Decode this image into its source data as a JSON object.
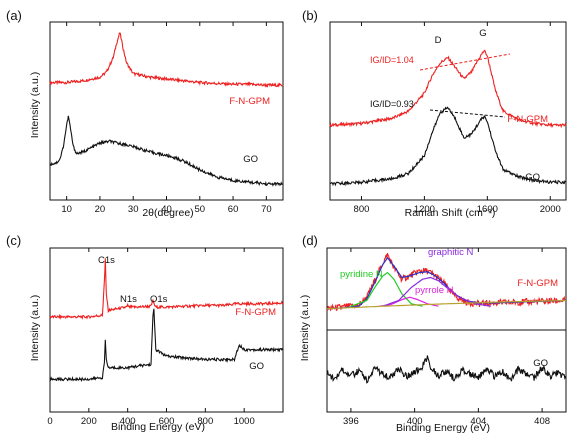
{
  "figure": {
    "panels": [
      {
        "id": "a",
        "panel_label": "(a)",
        "xlabel": "2θ(degree)",
        "ylabel": "Intensity (a.u.)",
        "xticks": [
          "10",
          "20",
          "30",
          "40",
          "50",
          "60",
          "70"
        ],
        "series_labels": [
          {
            "text": "F-N-GPM",
            "color": "#ee2020"
          },
          {
            "text": "GO",
            "color": "#111111"
          }
        ]
      },
      {
        "id": "b",
        "panel_label": "(b)",
        "xlabel": "Raman Shift (cm⁻¹)",
        "ylabel": "",
        "xticks": [
          "800",
          "1200",
          "1600",
          "2000"
        ],
        "series_labels": [
          {
            "text": "F-N-GPM",
            "color": "#ee2020"
          },
          {
            "text": "GO",
            "color": "#111111"
          }
        ],
        "annotations": [
          {
            "text": "D",
            "color": "#111111"
          },
          {
            "text": "G",
            "color": "#111111"
          },
          {
            "text": "IG/ID=1.04",
            "color": "#ee2020"
          },
          {
            "text": "IG/ID=0.93",
            "color": "#111111"
          }
        ]
      },
      {
        "id": "c",
        "panel_label": "(c)",
        "xlabel": "Binding Energy (eV)",
        "ylabel": "Intensity (a.u.)",
        "xticks": [
          "0",
          "200",
          "400",
          "600",
          "800",
          "1000"
        ],
        "series_labels": [
          {
            "text": "F-N-GPM",
            "color": "#ee2020"
          },
          {
            "text": "GO",
            "color": "#111111"
          }
        ],
        "annotations": [
          {
            "text": "C1s",
            "color": "#111111"
          },
          {
            "text": "N1s",
            "color": "#111111"
          },
          {
            "text": "O1s",
            "color": "#111111"
          }
        ]
      },
      {
        "id": "d",
        "panel_label": "(d)",
        "xlabel": "Binding Energy (eV)",
        "ylabel": "Intensity (a.u.)",
        "xticks": [
          "396",
          "400",
          "404",
          "408"
        ],
        "series_labels": [
          {
            "text": "F-N-GPM",
            "color": "#ee2020"
          },
          {
            "text": "GO",
            "color": "#111111"
          }
        ],
        "annotations": [
          {
            "text": "graphitic N",
            "color": "#8a2be2"
          },
          {
            "text": "pyridine N",
            "color": "#22cc22"
          },
          {
            "text": "pyrrole N",
            "color": "#dd22dd"
          }
        ]
      }
    ]
  },
  "chart_data": [
    {
      "type": "line",
      "panel": "a",
      "xlabel": "2θ(degree)",
      "ylabel": "Intensity (a.u.)",
      "xlim": [
        5,
        75
      ],
      "series": [
        {
          "name": "F-N-GPM",
          "color": "#ee2020",
          "x": [
            5,
            10,
            15,
            20,
            22,
            24,
            25,
            26,
            27,
            28,
            30,
            35,
            40,
            45,
            50,
            55,
            60,
            65,
            70,
            75
          ],
          "y": [
            0.66,
            0.66,
            0.67,
            0.69,
            0.72,
            0.8,
            0.88,
            0.94,
            0.85,
            0.77,
            0.71,
            0.69,
            0.68,
            0.67,
            0.66,
            0.655,
            0.65,
            0.65,
            0.645,
            0.645
          ]
        },
        {
          "name": "GO",
          "color": "#111111",
          "x": [
            5,
            7,
            8,
            9,
            10,
            10.5,
            11,
            12,
            13,
            15,
            18,
            20,
            23,
            25,
            28,
            30,
            35,
            40,
            42,
            45,
            50,
            55,
            60,
            65,
            70,
            75
          ],
          "y": [
            0.2,
            0.21,
            0.23,
            0.3,
            0.42,
            0.47,
            0.42,
            0.3,
            0.26,
            0.27,
            0.3,
            0.32,
            0.33,
            0.32,
            0.31,
            0.3,
            0.27,
            0.25,
            0.24,
            0.22,
            0.17,
            0.13,
            0.11,
            0.1,
            0.09,
            0.09
          ]
        }
      ]
    },
    {
      "type": "line",
      "panel": "b",
      "xlabel": "Raman Shift (cm⁻¹)",
      "ylabel": "",
      "xlim": [
        600,
        2100
      ],
      "series": [
        {
          "name": "F-N-GPM",
          "color": "#ee2020",
          "x": [
            600,
            800,
            1000,
            1100,
            1200,
            1250,
            1300,
            1350,
            1400,
            1450,
            1500,
            1550,
            1580,
            1600,
            1650,
            1700,
            1800,
            1900,
            2000,
            2100
          ],
          "y": [
            0.42,
            0.43,
            0.46,
            0.5,
            0.6,
            0.7,
            0.77,
            0.8,
            0.74,
            0.68,
            0.72,
            0.8,
            0.84,
            0.81,
            0.62,
            0.5,
            0.45,
            0.43,
            0.42,
            0.42
          ]
        },
        {
          "name": "GO",
          "color": "#111111",
          "x": [
            600,
            800,
            1000,
            1100,
            1200,
            1250,
            1300,
            1350,
            1400,
            1450,
            1500,
            1550,
            1580,
            1600,
            1650,
            1700,
            1800,
            1900,
            2000,
            2100
          ],
          "y": [
            0.09,
            0.1,
            0.12,
            0.15,
            0.25,
            0.38,
            0.49,
            0.52,
            0.45,
            0.35,
            0.37,
            0.44,
            0.47,
            0.44,
            0.28,
            0.17,
            0.13,
            0.11,
            0.1,
            0.1
          ]
        }
      ]
    },
    {
      "type": "line",
      "panel": "c",
      "xlabel": "Binding Energy (eV)",
      "ylabel": "Intensity (a.u.)",
      "xlim": [
        0,
        1200
      ],
      "series": [
        {
          "name": "F-N-GPM",
          "color": "#ee2020",
          "x": [
            0,
            100,
            200,
            270,
            280,
            285,
            290,
            300,
            350,
            395,
            400,
            405,
            450,
            520,
            530,
            535,
            545,
            600,
            700,
            800,
            900,
            960,
            970,
            1000,
            1100,
            1200
          ],
          "y": [
            0.58,
            0.58,
            0.58,
            0.59,
            0.8,
            0.93,
            0.72,
            0.62,
            0.63,
            0.64,
            0.65,
            0.64,
            0.64,
            0.645,
            0.68,
            0.66,
            0.64,
            0.64,
            0.645,
            0.65,
            0.65,
            0.66,
            0.66,
            0.66,
            0.66,
            0.665
          ]
        },
        {
          "name": "GO",
          "color": "#111111",
          "x": [
            0,
            100,
            200,
            270,
            280,
            285,
            290,
            300,
            350,
            400,
            450,
            520,
            530,
            535,
            545,
            600,
            700,
            800,
            900,
            950,
            960,
            975,
            1000,
            1100,
            1200
          ],
          "y": [
            0.2,
            0.2,
            0.2,
            0.21,
            0.3,
            0.44,
            0.32,
            0.27,
            0.27,
            0.27,
            0.28,
            0.29,
            0.58,
            0.63,
            0.38,
            0.34,
            0.33,
            0.32,
            0.32,
            0.32,
            0.36,
            0.41,
            0.38,
            0.38,
            0.38
          ]
        }
      ]
    },
    {
      "type": "line",
      "panel": "d",
      "xlabel": "Binding Energy (eV)",
      "ylabel": "Intensity (a.u.)",
      "xlim": [
        394.5,
        409.5
      ],
      "series": [
        {
          "name": "F-N-GPM",
          "color": "#ee2020",
          "x": [
            394.5,
            395.5,
            396.5,
            397.0,
            397.5,
            398.0,
            398.3,
            398.7,
            399.2,
            399.7,
            400.3,
            400.8,
            401.3,
            401.8,
            402.5,
            403.2,
            404.0,
            405.0,
            406.5,
            408.0,
            409.5
          ],
          "y": [
            0.63,
            0.64,
            0.65,
            0.7,
            0.8,
            0.91,
            0.96,
            0.88,
            0.81,
            0.83,
            0.86,
            0.86,
            0.83,
            0.79,
            0.71,
            0.67,
            0.66,
            0.665,
            0.67,
            0.675,
            0.68
          ]
        },
        {
          "name": "fit envelope",
          "color": "#2233cc",
          "x": [
            394.5,
            395.5,
            396.5,
            397.0,
            397.5,
            398.0,
            398.3,
            398.7,
            399.2,
            399.7,
            400.3,
            400.8,
            401.3,
            401.8,
            402.5,
            403.2,
            404.0,
            405.0,
            406.5,
            408.0,
            409.5
          ],
          "y": [
            0.63,
            0.635,
            0.645,
            0.69,
            0.79,
            0.9,
            0.94,
            0.89,
            0.82,
            0.83,
            0.85,
            0.855,
            0.83,
            0.79,
            0.72,
            0.68,
            0.665,
            0.665,
            0.67,
            0.675,
            0.68
          ]
        },
        {
          "name": "pyridine N",
          "color": "#22cc22",
          "x": [
            396.0,
            397.0,
            397.5,
            398.0,
            398.3,
            398.7,
            399.2,
            399.8,
            400.5
          ],
          "y": [
            0.645,
            0.68,
            0.76,
            0.83,
            0.85,
            0.81,
            0.72,
            0.66,
            0.645
          ]
        },
        {
          "name": "pyrrole N",
          "color": "#dd22dd",
          "x": [
            397.8,
            398.5,
            399.2,
            399.7,
            400.2,
            400.8,
            401.5
          ],
          "y": [
            0.645,
            0.655,
            0.685,
            0.7,
            0.685,
            0.66,
            0.645
          ]
        },
        {
          "name": "graphitic N",
          "color": "#8a2be2",
          "x": [
            398.0,
            399.0,
            399.8,
            400.5,
            401.0,
            401.5,
            402.0,
            402.8,
            403.8,
            404.8
          ],
          "y": [
            0.645,
            0.68,
            0.76,
            0.81,
            0.82,
            0.8,
            0.76,
            0.7,
            0.66,
            0.645
          ]
        },
        {
          "name": "baseline",
          "color": "#b8a030",
          "x": [
            394.5,
            398.0,
            402.0,
            406.0,
            409.5
          ],
          "y": [
            0.63,
            0.645,
            0.66,
            0.672,
            0.68
          ]
        },
        {
          "name": "GO",
          "color": "#111111",
          "x": [
            394.5,
            395.0,
            395.5,
            396.0,
            396.5,
            397.0,
            397.5,
            398.0,
            398.5,
            399.0,
            399.5,
            400.0,
            400.5,
            400.8,
            401.0,
            401.5,
            402.0,
            402.5,
            403.0,
            403.5,
            404.0,
            404.5,
            405.0,
            405.5,
            406.0,
            406.5,
            407.0,
            407.5,
            408.0,
            408.5,
            409.0,
            409.5
          ],
          "y": [
            0.24,
            0.2,
            0.26,
            0.22,
            0.25,
            0.19,
            0.27,
            0.23,
            0.21,
            0.26,
            0.22,
            0.24,
            0.28,
            0.33,
            0.27,
            0.22,
            0.25,
            0.2,
            0.26,
            0.23,
            0.21,
            0.27,
            0.22,
            0.25,
            0.19,
            0.26,
            0.23,
            0.21,
            0.27,
            0.22,
            0.24,
            0.21
          ]
        }
      ]
    }
  ]
}
